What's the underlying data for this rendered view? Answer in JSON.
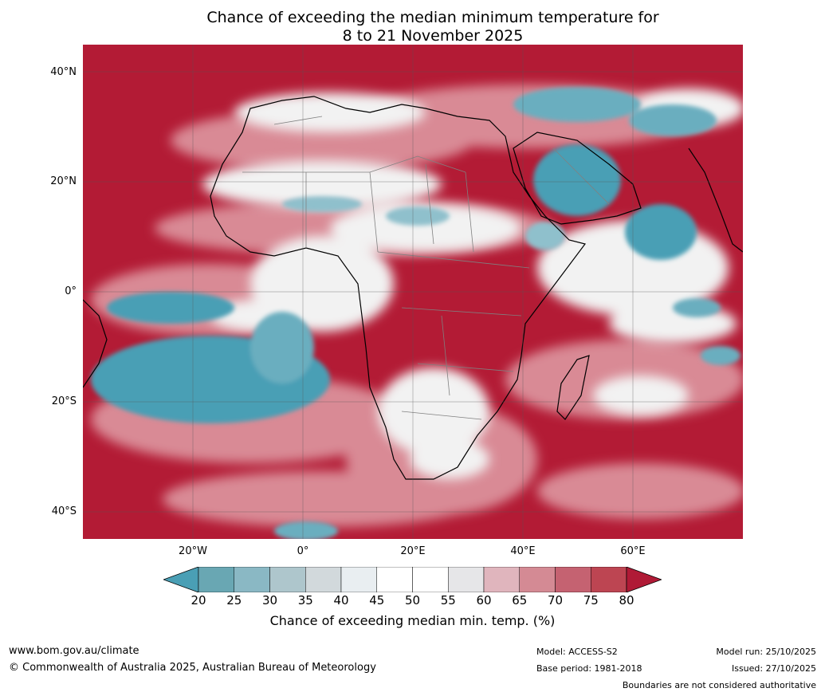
{
  "title": {
    "line1": "Chance of exceeding the median minimum temperature for",
    "line2": "8 to 21 November 2025"
  },
  "map": {
    "region": "Africa and surrounding oceans",
    "lat_labels": [
      "40°N",
      "20°N",
      "0°",
      "20°S",
      "40°S"
    ],
    "lon_labels": [
      "20°W",
      "0°",
      "20°E",
      "40°E",
      "60°E"
    ],
    "palette": {
      "very_low": "#4a9fb5",
      "low": "#8fc0cc",
      "neutral": "#ffffff",
      "high": "#d98a95",
      "very_high": "#b31b35",
      "coastline": "#000000",
      "borders": "#808080",
      "grid": "#555555"
    }
  },
  "colorbar": {
    "ticks": [
      "20",
      "25",
      "30",
      "35",
      "40",
      "45",
      "50",
      "55",
      "60",
      "65",
      "70",
      "75",
      "80"
    ],
    "label": "Chance of exceeding median min. temp. (%)",
    "colors": [
      "#4a9fb5",
      "#69a7b3",
      "#8ab8c4",
      "#aec6cc",
      "#d2d9dc",
      "#e9eef1",
      "#ffffff",
      "#ffffff",
      "#e6e6e8",
      "#e0b5bd",
      "#d48a94",
      "#c56271",
      "#bd4552",
      "#b01a36"
    ]
  },
  "footer": {
    "website": "www.bom.gov.au/climate",
    "copyright": "© Commonwealth of Australia 2025, Australian Bureau of Meteorology",
    "model": "Model: ACCESS-S2",
    "base_period": "Base period: 1981-2018",
    "model_run": "Model run: 25/10/2025",
    "issued": "Issued: 27/10/2025",
    "disclaimer": "Boundaries are not considered authoritative"
  }
}
